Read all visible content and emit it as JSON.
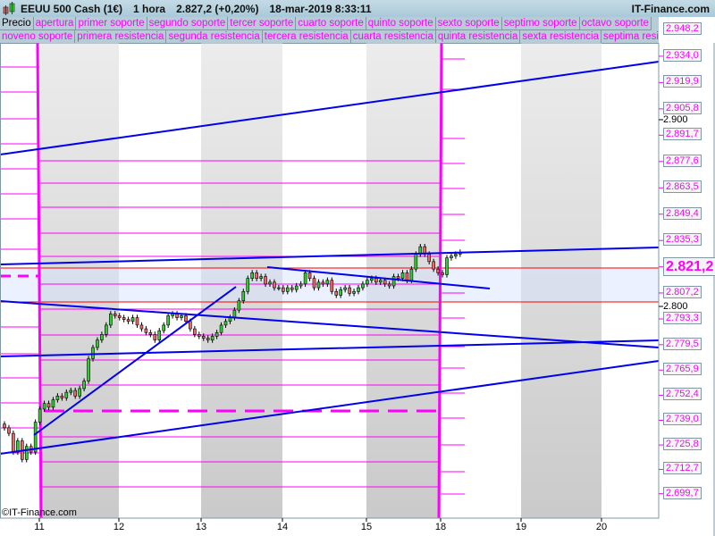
{
  "header": {
    "instrument": "EEUU 500 Cash (1€)",
    "timeframe": "1 hora",
    "price": "2.827,2 (+0,20%)",
    "datetime": "18-mar-2019 8:33:11",
    "brand": "IT-Finance.com"
  },
  "legend_row1": [
    "Precio",
    "apertura",
    "primer soporte",
    "segundo soporte",
    "tercer soporte",
    "cuarto soporte",
    "quinto soporte",
    "sexto soporte",
    "septimo soporte",
    "octavo soporte"
  ],
  "legend_row2": [
    "noveno soporte",
    "primera resistencia",
    "segunda resistencia",
    "tercera resistencia",
    "cuarta resistencia",
    "quinta resistencia",
    "sexta resistencia",
    "septima resistencia"
  ],
  "colors": {
    "levels": "#ff00ff",
    "trendlines": "#0000ee",
    "red_levels": "#ff0000",
    "up": "#33cc33",
    "down": "#ee6666"
  },
  "chart_data": {
    "type": "candlestick",
    "y_axis_levels": [
      "2.948,2",
      "2.934,0",
      "2.919,9",
      "2.905,8",
      "2.891,7",
      "2.877,6",
      "2.863,5",
      "2.849,4",
      "2.835,3",
      "2.821,2",
      "2.807,2",
      "2.793,3",
      "2.779,5",
      "2.765,9",
      "2.752,4",
      "2.739,0",
      "2.725,8",
      "2.712,7",
      "2.699,7"
    ],
    "y_axis_ticks": [
      "2.900",
      "2.800"
    ],
    "current_price_label": "2.821,2",
    "x_tick_labels": [
      "11",
      "12",
      "13",
      "14",
      "15",
      "18",
      "19",
      "20"
    ],
    "closes": [
      2735,
      2732,
      2722,
      2728,
      2718,
      2725,
      2722,
      2738,
      2745,
      2748,
      2746,
      2750,
      2752,
      2751,
      2754,
      2755,
      2752,
      2756,
      2760,
      2772,
      2778,
      2782,
      2785,
      2790,
      2796,
      2795,
      2794,
      2793,
      2792,
      2794,
      2790,
      2788,
      2786,
      2785,
      2782,
      2787,
      2790,
      2795,
      2796,
      2794,
      2795,
      2792,
      2788,
      2785,
      2784,
      2783,
      2782,
      2784,
      2786,
      2790,
      2792,
      2794,
      2798,
      2803,
      2808,
      2815,
      2818,
      2815,
      2816,
      2812,
      2813,
      2810,
      2810,
      2808,
      2810,
      2809,
      2811,
      2812,
      2818,
      2815,
      2810,
      2813,
      2812,
      2814,
      2808,
      2806,
      2809,
      2810,
      2807,
      2808,
      2810,
      2812,
      2814,
      2815,
      2813,
      2814,
      2812,
      2811,
      2816,
      2815,
      2818,
      2814,
      2820,
      2828,
      2832,
      2828,
      2824,
      2820,
      2818,
      2817,
      2826,
      2827,
      2828,
      2829
    ]
  },
  "footer": {
    "copyright": "©IT-Finance.com"
  }
}
